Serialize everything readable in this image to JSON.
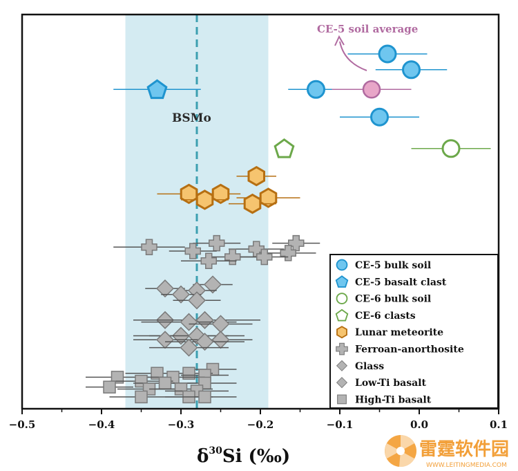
{
  "chart_data": {
    "type": "scatter",
    "title": "",
    "xlabel": "δ30Si (‰)",
    "xlabel_parts": {
      "delta": "δ",
      "superscript": "30",
      "rest": "Si (‰)"
    },
    "ylabel": "",
    "xlim": [
      -0.5,
      0.1
    ],
    "x_ticks": [
      -0.5,
      -0.4,
      -0.3,
      -0.2,
      -0.1,
      0.0,
      0.1
    ],
    "x_tick_labels": [
      "−0.5",
      "−0.4",
      "−0.3",
      "−0.2",
      "−0.1",
      "0.0",
      "0.1"
    ],
    "ylim": [
      0,
      100
    ],
    "grid": false,
    "legend_position": "bottom-right",
    "bsmo": {
      "label": "BSMo",
      "value": -0.28,
      "range": [
        -0.37,
        -0.19
      ],
      "band_color": "#d4ebf2",
      "line_color": "#3c9fb0"
    },
    "annotation": {
      "text": "CE-5 soil average",
      "color": "#b06aa0",
      "marker_color": "#e8a6c8"
    },
    "series": [
      {
        "name": "CE-5 bulk soil",
        "marker": "circle",
        "fill": "#6fc6ef",
        "stroke": "#1f94cf",
        "errbar": "#1f94cf",
        "points": [
          {
            "x": -0.04,
            "y": 90,
            "err": 0.05
          },
          {
            "x": -0.01,
            "y": 86,
            "err": 0.045
          },
          {
            "x": -0.13,
            "y": 81,
            "err": 0.035
          },
          {
            "x": -0.05,
            "y": 74,
            "err": 0.05
          }
        ]
      },
      {
        "name": "CE-5 basalt clast",
        "marker": "pentagon",
        "fill": "#6fc6ef",
        "stroke": "#1f94cf",
        "errbar": "#1f94cf",
        "points": [
          {
            "x": -0.33,
            "y": 81,
            "err": 0.055
          }
        ]
      },
      {
        "name": "CE-6 bulk soil",
        "marker": "circle",
        "fill": "#ffffff",
        "stroke": "#6ca84a",
        "errbar": "#6ca84a",
        "points": [
          {
            "x": 0.04,
            "y": 66,
            "err": 0.05
          }
        ]
      },
      {
        "name": "CE-6 clasts",
        "marker": "pentagon",
        "fill": "#ffffff",
        "stroke": "#6ca84a",
        "errbar": "#6ca84a",
        "points": [
          {
            "x": -0.17,
            "y": 66,
            "err": 0
          }
        ]
      },
      {
        "name": "Lunar meteorite",
        "marker": "hexagon",
        "fill": "#f6c46f",
        "stroke": "#b66f12",
        "errbar": "#b66f12",
        "points": [
          {
            "x": -0.205,
            "y": 59,
            "err": 0.025
          },
          {
            "x": -0.29,
            "y": 54.5,
            "err": 0.04
          },
          {
            "x": -0.25,
            "y": 54.5,
            "err": 0.025
          },
          {
            "x": -0.19,
            "y": 53.5,
            "err": 0.04
          },
          {
            "x": -0.27,
            "y": 53,
            "err": 0.03
          },
          {
            "x": -0.21,
            "y": 52,
            "err": 0.03
          }
        ]
      },
      {
        "name": "Ferroan-anorthosite",
        "marker": "plus",
        "fill": "#b3b3b3",
        "stroke": "#7a7a7a",
        "errbar": "#555555",
        "points": [
          {
            "x": -0.255,
            "y": 42,
            "err": 0.03
          },
          {
            "x": -0.155,
            "y": 42,
            "err": 0.03
          },
          {
            "x": -0.34,
            "y": 41,
            "err": 0.045
          },
          {
            "x": -0.205,
            "y": 40.5,
            "err": 0.035
          },
          {
            "x": -0.285,
            "y": 40,
            "err": 0.03
          },
          {
            "x": -0.165,
            "y": 39.5,
            "err": 0.035
          },
          {
            "x": -0.235,
            "y": 38.5,
            "err": 0.03
          },
          {
            "x": -0.195,
            "y": 38.5,
            "err": 0.03
          },
          {
            "x": -0.265,
            "y": 37.5,
            "err": 0.035
          }
        ]
      },
      {
        "name": "Glass",
        "marker": "diamond",
        "fill": "#b3b3b3",
        "stroke": "#7a7a7a",
        "errbar": "#555555",
        "points": [
          {
            "x": -0.26,
            "y": 31.5,
            "err": 0.025
          },
          {
            "x": -0.32,
            "y": 30.5,
            "err": 0.025
          },
          {
            "x": -0.28,
            "y": 30,
            "err": 0.025
          },
          {
            "x": -0.3,
            "y": 29,
            "err": 0.025
          },
          {
            "x": -0.28,
            "y": 27.5,
            "err": 0.03
          }
        ]
      },
      {
        "name": "Low-Ti basalt",
        "marker": "diamond",
        "fill": "#b3b3b3",
        "stroke": "#7a7a7a",
        "errbar": "#555555",
        "points": [
          {
            "x": -0.32,
            "y": 22.5,
            "err": 0.04
          },
          {
            "x": -0.27,
            "y": 22.5,
            "err": 0.07
          },
          {
            "x": -0.29,
            "y": 22,
            "err": 0.06
          },
          {
            "x": -0.25,
            "y": 21.5,
            "err": 0.04
          },
          {
            "x": -0.3,
            "y": 18.5,
            "err": 0.06
          },
          {
            "x": -0.28,
            "y": 18.5,
            "err": 0.06
          },
          {
            "x": -0.25,
            "y": 17.5,
            "err": 0.04
          },
          {
            "x": -0.32,
            "y": 17.5,
            "err": 0.04
          },
          {
            "x": -0.27,
            "y": 17,
            "err": 0.05
          },
          {
            "x": -0.29,
            "y": 15.5,
            "err": 0.05
          }
        ]
      },
      {
        "name": "High-Ti basalt",
        "marker": "square",
        "fill": "#b3b3b3",
        "stroke": "#7a7a7a",
        "errbar": "#555555",
        "points": [
          {
            "x": -0.26,
            "y": 10,
            "err": 0.03
          },
          {
            "x": -0.33,
            "y": 9,
            "err": 0.04
          },
          {
            "x": -0.29,
            "y": 9,
            "err": 0.03
          },
          {
            "x": -0.27,
            "y": 8.5,
            "err": 0.03
          },
          {
            "x": -0.38,
            "y": 8,
            "err": 0.04
          },
          {
            "x": -0.31,
            "y": 8,
            "err": 0.04
          },
          {
            "x": -0.35,
            "y": 7,
            "err": 0.04
          },
          {
            "x": -0.32,
            "y": 6.5,
            "err": 0.04
          },
          {
            "x": -0.27,
            "y": 6.5,
            "err": 0.04
          },
          {
            "x": -0.39,
            "y": 5.5,
            "err": 0.03
          },
          {
            "x": -0.34,
            "y": 5,
            "err": 0.04
          },
          {
            "x": -0.3,
            "y": 5,
            "err": 0.04
          },
          {
            "x": -0.28,
            "y": 4.5,
            "err": 0.04
          },
          {
            "x": -0.35,
            "y": 3,
            "err": 0.04
          },
          {
            "x": -0.29,
            "y": 3,
            "err": 0.03
          },
          {
            "x": -0.27,
            "y": 3,
            "err": 0.04
          }
        ]
      }
    ],
    "ce5_soil_average": {
      "x": -0.06,
      "y": 81,
      "err": 0.05
    }
  },
  "watermark": {
    "text": "雷霆软件园",
    "subtext": "WWW.LEITINGMEDIA.COM"
  }
}
